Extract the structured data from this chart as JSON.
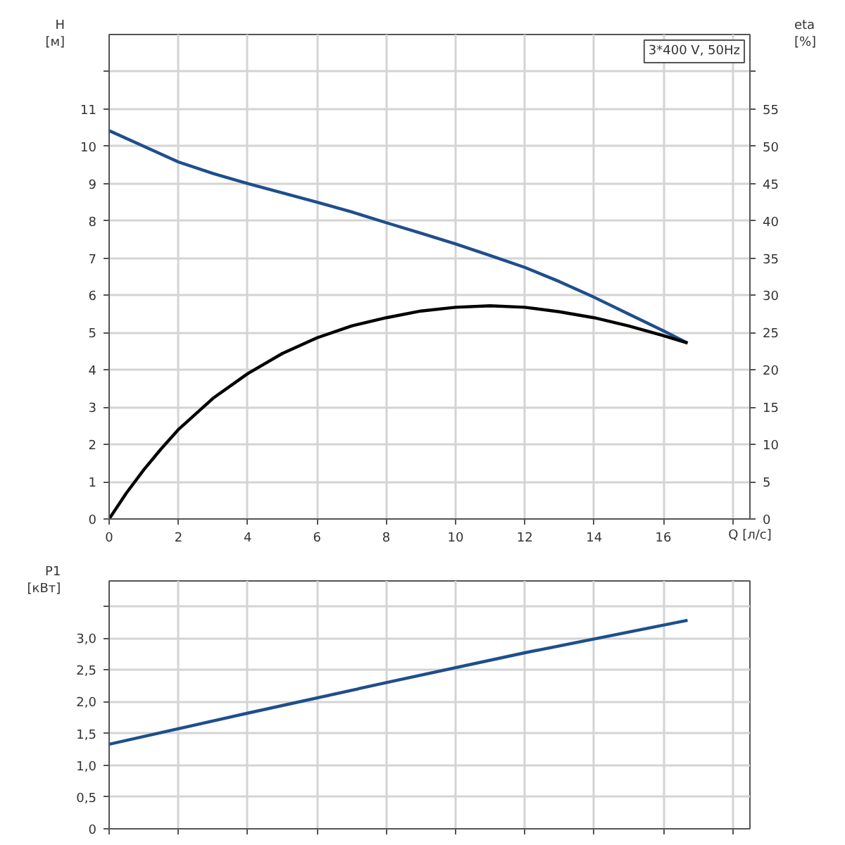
{
  "chart_data": [
    {
      "type": "line",
      "xlabel": "Q [л/с]",
      "ylabel": "H [м]",
      "y2label": "eta [%]",
      "annotations": [
        "3*400 V, 50Hz"
      ],
      "xlim": [
        0,
        18.5
      ],
      "xticks": [
        0,
        2,
        4,
        6,
        8,
        10,
        12,
        14,
        16,
        {
          "value": 18,
          "label": null
        }
      ],
      "ylim": [
        0,
        13
      ],
      "yticks": [
        0,
        1,
        2,
        3,
        4,
        5,
        6,
        7,
        8,
        9,
        10,
        11,
        {
          "value": 12,
          "label": null
        }
      ],
      "y2lim": [
        0,
        65
      ],
      "y2ticks": [
        0,
        5,
        10,
        15,
        20,
        25,
        30,
        35,
        40,
        45,
        50,
        55,
        {
          "value": 60,
          "label": null
        }
      ],
      "grid": true,
      "series": [
        {
          "color": "#1f4e8c",
          "axis": "y",
          "x": [
            0,
            1,
            2,
            3,
            4,
            5,
            6,
            7,
            8,
            9,
            10,
            11,
            12,
            13,
            14,
            15,
            16,
            16.7
          ],
          "values": [
            10.42,
            10.0,
            9.58,
            9.27,
            9.0,
            8.75,
            8.5,
            8.24,
            7.95,
            7.67,
            7.38,
            7.07,
            6.75,
            6.37,
            5.95,
            5.5,
            5.05,
            4.72
          ]
        },
        {
          "color": "#000000",
          "axis": "y2",
          "x": [
            0,
            0.5,
            1,
            1.5,
            2,
            3,
            4,
            5,
            6,
            7,
            8,
            9,
            10,
            11,
            12,
            13,
            14,
            15,
            16,
            16.7
          ],
          "values": [
            0,
            3.5,
            6.6,
            9.4,
            12.0,
            16.2,
            19.5,
            22.2,
            24.3,
            25.9,
            27.0,
            27.9,
            28.4,
            28.6,
            28.4,
            27.8,
            27.0,
            25.9,
            24.6,
            23.6
          ]
        }
      ]
    },
    {
      "type": "line",
      "ylabel": "P1 [кВт]",
      "tick_labels": "y",
      "xlim": [
        0,
        18.5
      ],
      "xticks": [
        0,
        2,
        4,
        6,
        8,
        10,
        12,
        14,
        16,
        {
          "value": 18,
          "label": null
        }
      ],
      "ylim": [
        0,
        3.9
      ],
      "yticks": [
        0,
        {
          "value": 0.5,
          "label": "0,5"
        },
        {
          "value": 1,
          "label": "1,0"
        },
        {
          "value": 1.5,
          "label": "1,5"
        },
        {
          "value": 2,
          "label": "2,0"
        },
        {
          "value": 2.5,
          "label": "2,5"
        },
        {
          "value": 3,
          "label": "3,0"
        },
        {
          "value": 3.5,
          "label": null
        }
      ],
      "grid": true,
      "series": [
        {
          "color": "#1f4e8c",
          "x": [
            0,
            4,
            8,
            12,
            16.7
          ],
          "values": [
            1.33,
            1.82,
            2.3,
            2.77,
            3.28
          ]
        }
      ]
    }
  ]
}
